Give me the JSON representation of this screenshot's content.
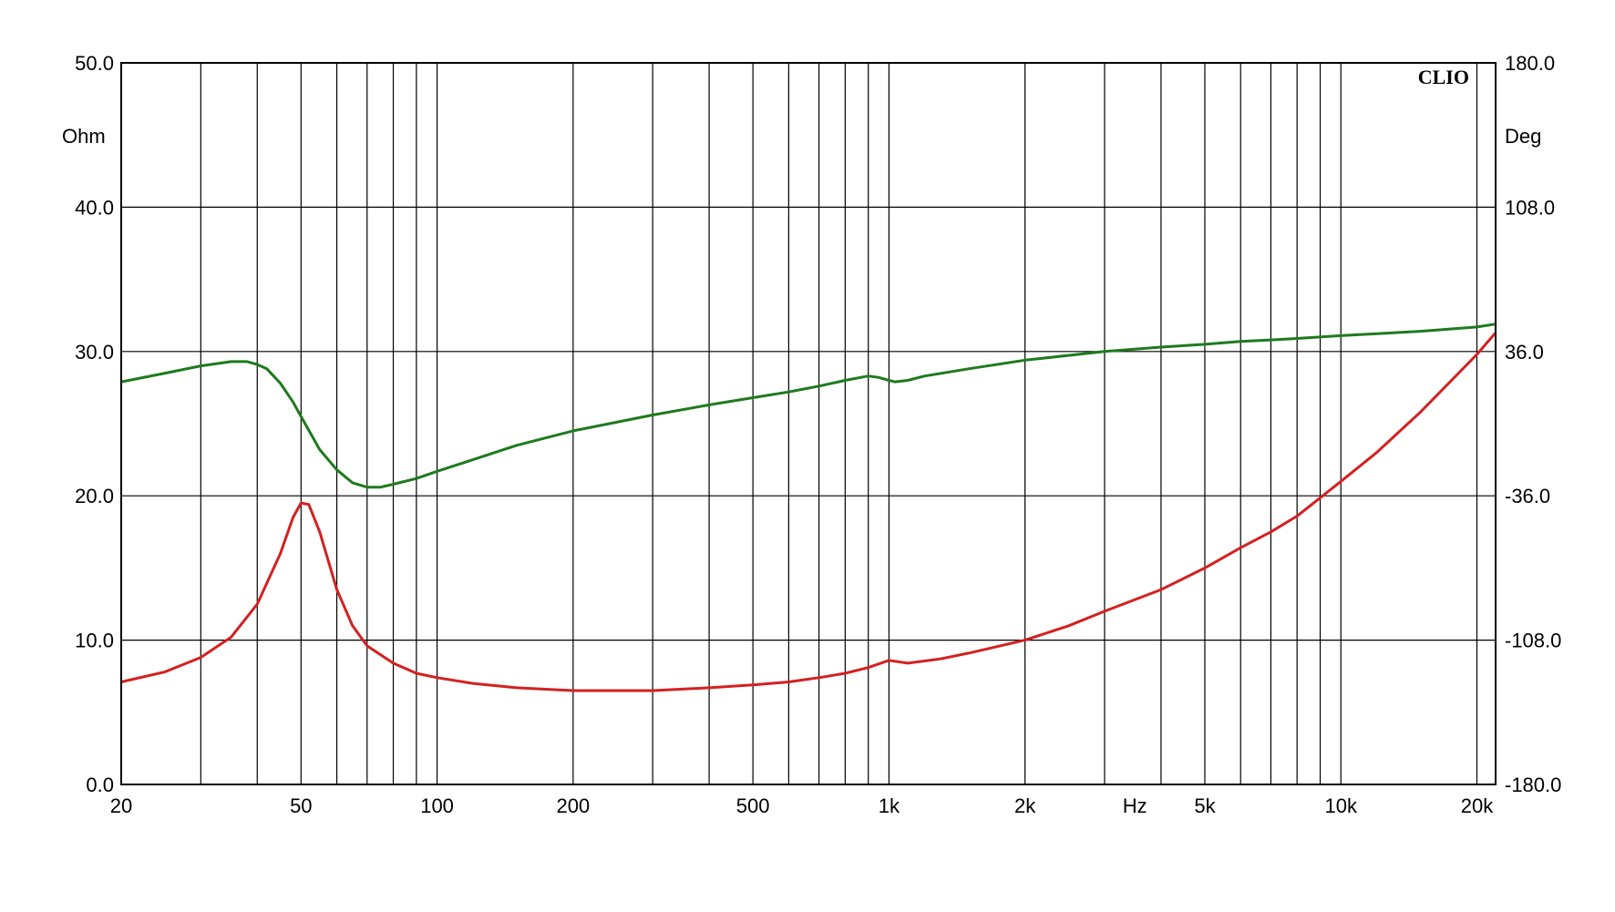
{
  "chart_data": {
    "type": "line",
    "brand": "CLIO",
    "x_unit_label": "Hz",
    "y_left_unit": "Ohm",
    "y_right_unit": "Deg",
    "x_scale": "log",
    "xlim": [
      20,
      22000
    ],
    "ylim_left": [
      0,
      50
    ],
    "ylim_right": [
      -180,
      180
    ],
    "grid": true,
    "x_grid_values": [
      20,
      30,
      40,
      50,
      60,
      70,
      80,
      90,
      100,
      200,
      300,
      400,
      500,
      600,
      700,
      800,
      900,
      1000,
      2000,
      3000,
      4000,
      5000,
      6000,
      7000,
      8000,
      9000,
      10000,
      20000
    ],
    "x_tick_labels": [
      {
        "value": 20,
        "label": "20"
      },
      {
        "value": 50,
        "label": "50"
      },
      {
        "value": 100,
        "label": "100"
      },
      {
        "value": 200,
        "label": "200"
      },
      {
        "value": 500,
        "label": "500"
      },
      {
        "value": 1000,
        "label": "1k"
      },
      {
        "value": 2000,
        "label": "2k"
      },
      {
        "value": 3500,
        "label": "Hz"
      },
      {
        "value": 5000,
        "label": "5k"
      },
      {
        "value": 10000,
        "label": "10k"
      },
      {
        "value": 20000,
        "label": "20k"
      }
    ],
    "y_left_ticks": [
      {
        "value": 0,
        "label": "0.0"
      },
      {
        "value": 10,
        "label": "10.0"
      },
      {
        "value": 20,
        "label": "20.0"
      },
      {
        "value": 30,
        "label": "30.0"
      },
      {
        "value": 40,
        "label": "40.0"
      },
      {
        "value": 50,
        "label": "50.0"
      }
    ],
    "y_right_ticks": [
      {
        "value": -180,
        "label": "-180.0"
      },
      {
        "value": -108,
        "label": "-108.0"
      },
      {
        "value": -36,
        "label": "-36.0"
      },
      {
        "value": 36,
        "label": "36.0"
      },
      {
        "value": 108,
        "label": "108.0"
      },
      {
        "value": 180,
        "label": "180.0"
      }
    ],
    "series": [
      {
        "color": "#1e7a1e",
        "axis": "left",
        "points": [
          [
            20,
            27.9
          ],
          [
            25,
            28.5
          ],
          [
            30,
            29.0
          ],
          [
            35,
            29.3
          ],
          [
            38,
            29.3
          ],
          [
            40,
            29.1
          ],
          [
            42,
            28.8
          ],
          [
            45,
            27.8
          ],
          [
            48,
            26.5
          ],
          [
            50,
            25.5
          ],
          [
            55,
            23.2
          ],
          [
            60,
            21.8
          ],
          [
            65,
            20.9
          ],
          [
            70,
            20.6
          ],
          [
            75,
            20.6
          ],
          [
            80,
            20.8
          ],
          [
            90,
            21.2
          ],
          [
            100,
            21.7
          ],
          [
            120,
            22.5
          ],
          [
            150,
            23.5
          ],
          [
            200,
            24.5
          ],
          [
            300,
            25.6
          ],
          [
            400,
            26.3
          ],
          [
            500,
            26.8
          ],
          [
            600,
            27.2
          ],
          [
            700,
            27.6
          ],
          [
            800,
            28.0
          ],
          [
            900,
            28.3
          ],
          [
            950,
            28.2
          ],
          [
            1000,
            28.0
          ],
          [
            1030,
            27.9
          ],
          [
            1100,
            28.0
          ],
          [
            1200,
            28.3
          ],
          [
            1500,
            28.8
          ],
          [
            2000,
            29.4
          ],
          [
            3000,
            30.0
          ],
          [
            4000,
            30.3
          ],
          [
            5000,
            30.5
          ],
          [
            6000,
            30.7
          ],
          [
            7000,
            30.8
          ],
          [
            8000,
            30.9
          ],
          [
            10000,
            31.1
          ],
          [
            15000,
            31.4
          ],
          [
            20000,
            31.7
          ],
          [
            22000,
            31.9
          ]
        ]
      },
      {
        "color": "#d42020",
        "axis": "left",
        "points": [
          [
            20,
            7.1
          ],
          [
            25,
            7.8
          ],
          [
            30,
            8.8
          ],
          [
            35,
            10.2
          ],
          [
            40,
            12.5
          ],
          [
            45,
            16.0
          ],
          [
            48,
            18.5
          ],
          [
            50,
            19.5
          ],
          [
            52,
            19.4
          ],
          [
            55,
            17.5
          ],
          [
            60,
            13.5
          ],
          [
            65,
            11.0
          ],
          [
            70,
            9.6
          ],
          [
            80,
            8.4
          ],
          [
            90,
            7.7
          ],
          [
            100,
            7.4
          ],
          [
            120,
            7.0
          ],
          [
            150,
            6.7
          ],
          [
            200,
            6.5
          ],
          [
            300,
            6.5
          ],
          [
            400,
            6.7
          ],
          [
            500,
            6.9
          ],
          [
            600,
            7.1
          ],
          [
            700,
            7.4
          ],
          [
            800,
            7.7
          ],
          [
            900,
            8.1
          ],
          [
            1000,
            8.6
          ],
          [
            1100,
            8.4
          ],
          [
            1300,
            8.7
          ],
          [
            1500,
            9.1
          ],
          [
            2000,
            10.0
          ],
          [
            2500,
            11.0
          ],
          [
            3000,
            12.0
          ],
          [
            4000,
            13.5
          ],
          [
            5000,
            15.0
          ],
          [
            6000,
            16.4
          ],
          [
            7000,
            17.5
          ],
          [
            8000,
            18.6
          ],
          [
            10000,
            21.0
          ],
          [
            12000,
            23.0
          ],
          [
            15000,
            25.8
          ],
          [
            20000,
            29.8
          ],
          [
            22000,
            31.3
          ]
        ]
      }
    ]
  }
}
